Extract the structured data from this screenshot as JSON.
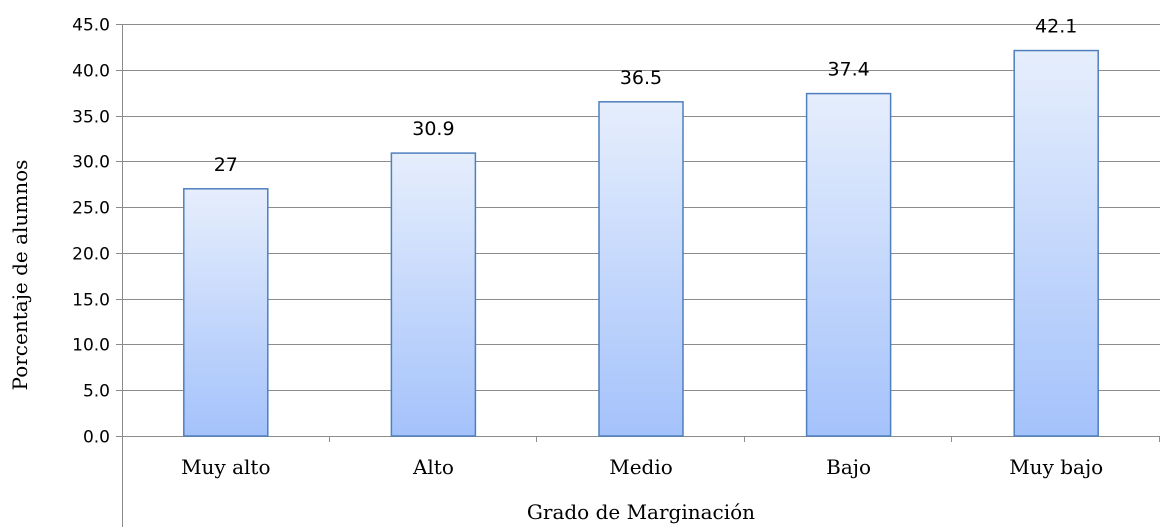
{
  "chart_data": {
    "type": "bar",
    "xlabel": "Grado de Marginación",
    "ylabel": "Porcentaje de alumnos",
    "categories": [
      "Muy alto",
      "Alto",
      "Medio",
      "Bajo",
      "Muy bajo"
    ],
    "values": [
      27,
      30.9,
      36.5,
      37.4,
      42.1
    ],
    "data_labels": [
      "27",
      "30.9",
      "36.5",
      "37.4",
      "42.1"
    ],
    "ylim": [
      0,
      45
    ],
    "ytick_step": 5,
    "ytick_labels": [
      "0.0",
      "5.0",
      "10.0",
      "15.0",
      "20.0",
      "25.0",
      "30.0",
      "35.0",
      "40.0",
      "45.0"
    ],
    "grid": true,
    "legend": "none",
    "colors": {
      "bar_top": "#e6eefc",
      "bar_bottom": "#a4c2fb",
      "bar_stroke": "#4f7fbe",
      "grid": "#8c8c8c",
      "axis": "#8c8c8c"
    }
  }
}
